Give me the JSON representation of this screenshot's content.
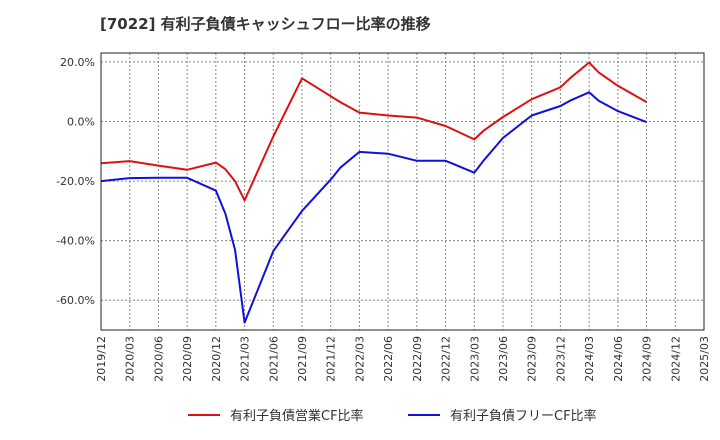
{
  "title": "[7022]  有利子負債キャッシュフロー比率の推移",
  "chart_data": {
    "type": "line",
    "title": "[7022]  有利子負債キャッシュフロー比率の推移",
    "x": [
      "2019/12",
      "2020/03",
      "2020/06",
      "2020/09",
      "2020/12",
      "2021/01",
      "2021/02",
      "2021/03",
      "2021/06",
      "2021/09",
      "2021/12",
      "2022/01",
      "2022/03",
      "2022/06",
      "2022/09",
      "2022/12",
      "2023/01",
      "2023/03",
      "2023/04",
      "2023/06",
      "2023/09",
      "2023/12",
      "2024/01",
      "2024/03",
      "2024/04",
      "2024/06",
      "2024/09"
    ],
    "xticks": [
      "2019/12",
      "2020/03",
      "2020/06",
      "2020/09",
      "2020/12",
      "2021/03",
      "2021/06",
      "2021/09",
      "2021/12",
      "2022/03",
      "2022/06",
      "2022/09",
      "2022/12",
      "2023/03",
      "2023/06",
      "2023/09",
      "2023/12",
      "2024/03",
      "2024/06",
      "2024/09",
      "2024/12",
      "2025/03"
    ],
    "series": [
      {
        "name": "有利子負債営業CF比率",
        "color": "#e01010",
        "values": [
          -14.0,
          -13.3,
          -14.8,
          -16.2,
          -13.8,
          -16.0,
          -20.0,
          -26.5,
          -5.0,
          14.5,
          8.5,
          6.5,
          3.0,
          2.0,
          1.3,
          -1.5,
          -3.0,
          -6.0,
          -3.0,
          1.5,
          7.5,
          11.5,
          14.5,
          19.8,
          16.5,
          12.0,
          6.5
        ]
      },
      {
        "name": "有利子負債フリーCF比率",
        "color": "#1010e0",
        "values": [
          -20.0,
          -19.0,
          -18.9,
          -18.9,
          -23.2,
          -31.0,
          -43.0,
          -67.5,
          -43.5,
          -30.0,
          -19.5,
          -15.5,
          -10.2,
          -10.8,
          -13.2,
          -13.2,
          -14.5,
          -17.2,
          -13.0,
          -5.5,
          2.0,
          5.2,
          7.0,
          9.8,
          7.0,
          3.5,
          -0.2
        ]
      }
    ],
    "ylim": [
      -70,
      23
    ],
    "yticks": [
      20,
      0,
      -20,
      -40,
      -60
    ],
    "ytick_labels": [
      "20.0%",
      "0.0%",
      "-20.0%",
      "-40.0%",
      "-60.0%"
    ],
    "xlabel": "",
    "ylabel": "",
    "grid": true,
    "legend_position": "bottom"
  }
}
